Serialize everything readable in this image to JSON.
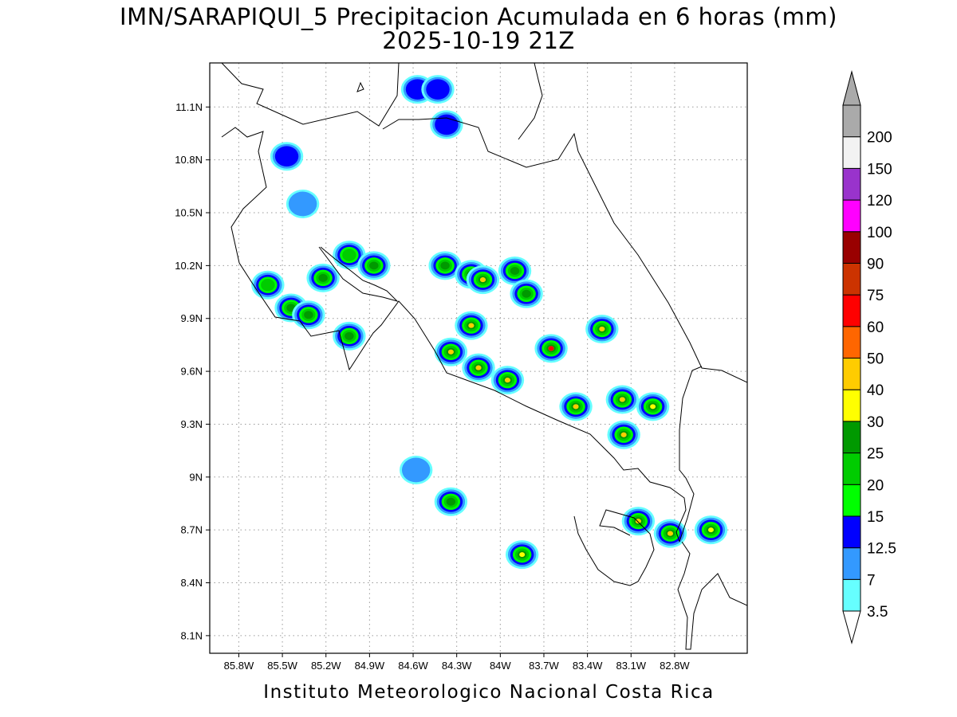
{
  "title_line1": "IMN/SARAPIQUI_5 Precipitacion Acumulada en 6 horas (mm)",
  "title_line2": "2025-10-19 21Z",
  "footer": "Instituto Meteorologico Nacional Costa Rica",
  "map": {
    "lon_range": [
      -86.0,
      -82.3
    ],
    "lat_range": [
      8.0,
      11.35
    ],
    "lat_ticks": [
      {
        "value": 11.1,
        "label": "11.1N"
      },
      {
        "value": 10.8,
        "label": "10.8N"
      },
      {
        "value": 10.5,
        "label": "10.5N"
      },
      {
        "value": 10.2,
        "label": "10.2N"
      },
      {
        "value": 9.9,
        "label": "9.9N"
      },
      {
        "value": 9.6,
        "label": "9.6N"
      },
      {
        "value": 9.3,
        "label": "9.3N"
      },
      {
        "value": 9.0,
        "label": "9N"
      },
      {
        "value": 8.7,
        "label": "8.7N"
      },
      {
        "value": 8.4,
        "label": "8.4N"
      },
      {
        "value": 8.1,
        "label": "8.1N"
      }
    ],
    "lon_ticks": [
      {
        "value": -85.8,
        "label": "85.8W"
      },
      {
        "value": -85.5,
        "label": "85.5W"
      },
      {
        "value": -85.2,
        "label": "85.2W"
      },
      {
        "value": -84.9,
        "label": "84.9W"
      },
      {
        "value": -84.6,
        "label": "84.6W"
      },
      {
        "value": -84.3,
        "label": "84.3W"
      },
      {
        "value": -84.0,
        "label": "84W"
      },
      {
        "value": -83.7,
        "label": "83.7W"
      },
      {
        "value": -83.4,
        "label": "83.4W"
      },
      {
        "value": -83.1,
        "label": "83.1W"
      },
      {
        "value": -82.8,
        "label": "82.8W"
      }
    ],
    "grid": "dotted"
  },
  "colorbar": {
    "units": "mm",
    "levels": [
      {
        "label": "3.5",
        "color": "#66ffff"
      },
      {
        "label": "7",
        "color": "#3399ff"
      },
      {
        "label": "12.5",
        "color": "#0000ff"
      },
      {
        "label": "15",
        "color": "#00ff00"
      },
      {
        "label": "20",
        "color": "#00cc00"
      },
      {
        "label": "25",
        "color": "#009900"
      },
      {
        "label": "30",
        "color": "#ffff00"
      },
      {
        "label": "40",
        "color": "#ffcc00"
      },
      {
        "label": "50",
        "color": "#ff6600"
      },
      {
        "label": "60",
        "color": "#ff0000"
      },
      {
        "label": "75",
        "color": "#cc3300"
      },
      {
        "label": "90",
        "color": "#990000"
      },
      {
        "label": "100",
        "color": "#ff00ff"
      },
      {
        "label": "120",
        "color": "#9933cc"
      },
      {
        "label": "150",
        "color": "#f2f2f2"
      },
      {
        "label": "200",
        "color": "#aaaaaa"
      }
    ]
  },
  "precip_cells": [
    {
      "lon": -84.57,
      "lat": 11.2,
      "peak_mm": 13
    },
    {
      "lon": -84.43,
      "lat": 11.2,
      "peak_mm": 13
    },
    {
      "lon": -84.37,
      "lat": 11.0,
      "peak_mm": 13
    },
    {
      "lon": -85.47,
      "lat": 10.82,
      "peak_mm": 13
    },
    {
      "lon": -85.36,
      "lat": 10.55,
      "peak_mm": 12
    },
    {
      "lon": -85.22,
      "lat": 10.13,
      "peak_mm": 25
    },
    {
      "lon": -85.04,
      "lat": 10.26,
      "peak_mm": 20
    },
    {
      "lon": -84.87,
      "lat": 10.2,
      "peak_mm": 25
    },
    {
      "lon": -84.38,
      "lat": 10.2,
      "peak_mm": 25
    },
    {
      "lon": -84.2,
      "lat": 10.15,
      "peak_mm": 30
    },
    {
      "lon": -84.12,
      "lat": 10.12,
      "peak_mm": 40
    },
    {
      "lon": -83.9,
      "lat": 10.17,
      "peak_mm": 25
    },
    {
      "lon": -83.82,
      "lat": 10.04,
      "peak_mm": 25
    },
    {
      "lon": -84.2,
      "lat": 9.86,
      "peak_mm": 40
    },
    {
      "lon": -84.34,
      "lat": 9.71,
      "peak_mm": 40
    },
    {
      "lon": -84.15,
      "lat": 9.62,
      "peak_mm": 40
    },
    {
      "lon": -83.95,
      "lat": 9.55,
      "peak_mm": 40
    },
    {
      "lon": -83.65,
      "lat": 9.73,
      "peak_mm": 60
    },
    {
      "lon": -83.3,
      "lat": 9.84,
      "peak_mm": 40
    },
    {
      "lon": -85.04,
      "lat": 9.8,
      "peak_mm": 25
    },
    {
      "lon": -85.44,
      "lat": 9.96,
      "peak_mm": 25
    },
    {
      "lon": -85.32,
      "lat": 9.92,
      "peak_mm": 25
    },
    {
      "lon": -85.6,
      "lat": 10.09,
      "peak_mm": 20
    },
    {
      "lon": -83.48,
      "lat": 9.4,
      "peak_mm": 40
    },
    {
      "lon": -83.16,
      "lat": 9.44,
      "peak_mm": 40
    },
    {
      "lon": -83.15,
      "lat": 9.24,
      "peak_mm": 40
    },
    {
      "lon": -82.95,
      "lat": 9.4,
      "peak_mm": 30
    },
    {
      "lon": -84.34,
      "lat": 8.86,
      "peak_mm": 25
    },
    {
      "lon": -83.85,
      "lat": 8.56,
      "peak_mm": 30
    },
    {
      "lon": -83.05,
      "lat": 8.75,
      "peak_mm": 40
    },
    {
      "lon": -82.83,
      "lat": 8.68,
      "peak_mm": 40
    },
    {
      "lon": -82.55,
      "lat": 8.7,
      "peak_mm": 30
    },
    {
      "lon": -84.58,
      "lat": 9.04,
      "peak_mm": 12
    }
  ]
}
